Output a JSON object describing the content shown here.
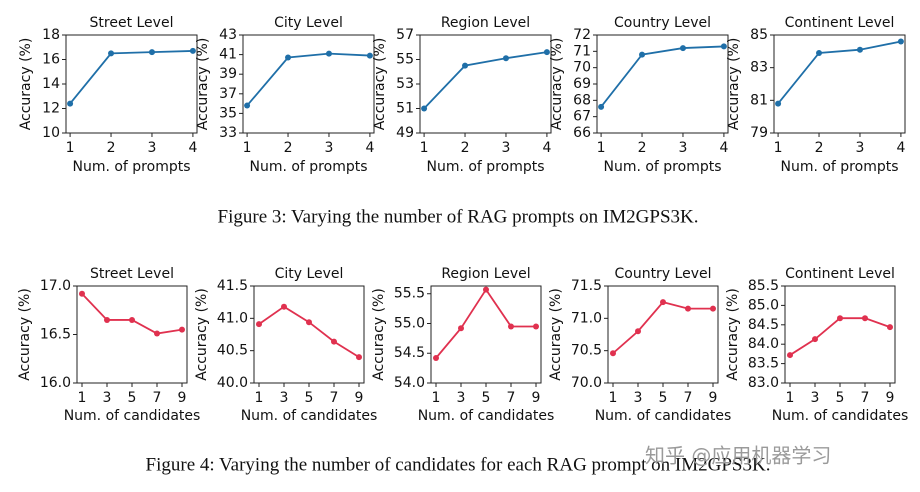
{
  "chart_data": [
    {
      "type": "line",
      "title": "Street Level",
      "xlabel": "Num. of prompts",
      "ylabel": "Accuracy (%)",
      "x": [
        1,
        2,
        3,
        4
      ],
      "xlim": [
        0.9,
        4.1
      ],
      "xticks": [
        1,
        2,
        3,
        4
      ],
      "ylim": [
        10,
        18
      ],
      "yticks": [
        10,
        12,
        14,
        16,
        18
      ],
      "series": [
        {
          "color": "#1f6fa8",
          "values": [
            12.4,
            16.5,
            16.6,
            16.7
          ]
        }
      ]
    },
    {
      "type": "line",
      "title": "City Level",
      "xlabel": "Num. of prompts",
      "ylabel": "Accuracy (%)",
      "x": [
        1,
        2,
        3,
        4
      ],
      "xlim": [
        0.9,
        4.1
      ],
      "xticks": [
        1,
        2,
        3,
        4
      ],
      "ylim": [
        33,
        43
      ],
      "yticks": [
        33,
        35,
        37,
        39,
        41,
        43
      ],
      "series": [
        {
          "color": "#1f6fa8",
          "values": [
            35.8,
            40.7,
            41.1,
            40.9
          ]
        }
      ]
    },
    {
      "type": "line",
      "title": "Region Level",
      "xlabel": "Num. of prompts",
      "ylabel": "Accuracy (%)",
      "x": [
        1,
        2,
        3,
        4
      ],
      "xlim": [
        0.9,
        4.1
      ],
      "xticks": [
        1,
        2,
        3,
        4
      ],
      "ylim": [
        49,
        57
      ],
      "yticks": [
        49,
        51,
        53,
        55,
        57
      ],
      "series": [
        {
          "color": "#1f6fa8",
          "values": [
            51.0,
            54.5,
            55.1,
            55.6
          ]
        }
      ]
    },
    {
      "type": "line",
      "title": "Country Level",
      "xlabel": "Num. of prompts",
      "ylabel": "Accuracy (%)",
      "x": [
        1,
        2,
        3,
        4
      ],
      "xlim": [
        0.9,
        4.1
      ],
      "xticks": [
        1,
        2,
        3,
        4
      ],
      "ylim": [
        66,
        72
      ],
      "yticks": [
        66,
        67,
        68,
        69,
        70,
        71,
        72
      ],
      "series": [
        {
          "color": "#1f6fa8",
          "values": [
            67.6,
            70.8,
            71.2,
            71.3
          ]
        }
      ]
    },
    {
      "type": "line",
      "title": "Continent Level",
      "xlabel": "Num. of prompts",
      "ylabel": "Accuracy (%)",
      "x": [
        1,
        2,
        3,
        4
      ],
      "xlim": [
        0.9,
        4.1
      ],
      "xticks": [
        1,
        2,
        3,
        4
      ],
      "ylim": [
        79,
        85
      ],
      "yticks": [
        79,
        81,
        83,
        85
      ],
      "series": [
        {
          "color": "#1f6fa8",
          "values": [
            80.8,
            83.9,
            84.1,
            84.6
          ]
        }
      ]
    },
    {
      "type": "line",
      "title": "Street Level",
      "xlabel": "Num. of candidates",
      "ylabel": "Accuracy (%)",
      "x": [
        1,
        3,
        5,
        7,
        9
      ],
      "xlim": [
        0.6,
        9.4
      ],
      "xticks": [
        1,
        3,
        5,
        7,
        9
      ],
      "ylim": [
        16,
        17
      ],
      "yticks": [
        {
          "value": 16,
          "label": "16.0"
        },
        16.5,
        {
          "value": 17,
          "label": "17.0"
        }
      ],
      "series": [
        {
          "color": "#e0314f",
          "values": [
            16.92,
            16.65,
            16.65,
            16.51,
            16.55
          ]
        }
      ]
    },
    {
      "type": "line",
      "title": "City Level",
      "xlabel": "Num. of candidates",
      "ylabel": "Accuracy (%)",
      "x": [
        1,
        3,
        5,
        7,
        9
      ],
      "xlim": [
        0.6,
        9.4
      ],
      "xticks": [
        1,
        3,
        5,
        7,
        9
      ],
      "ylim": [
        40,
        41.5
      ],
      "yticks": [
        {
          "value": 40,
          "label": "40.0"
        },
        40.5,
        {
          "value": 41,
          "label": "41.0"
        },
        41.5
      ],
      "series": [
        {
          "color": "#e0314f",
          "values": [
            40.91,
            41.18,
            40.94,
            40.64,
            40.4
          ]
        }
      ]
    },
    {
      "type": "line",
      "title": "Region Level",
      "xlabel": "Num. of candidates",
      "ylabel": "Accuracy (%)",
      "x": [
        1,
        3,
        5,
        7,
        9
      ],
      "xlim": [
        0.6,
        9.4
      ],
      "xticks": [
        1,
        3,
        5,
        7,
        9
      ],
      "ylim": [
        54,
        55.63
      ],
      "yticks": [
        {
          "value": 54,
          "label": "54.0"
        },
        54.5,
        {
          "value": 55,
          "label": "55.0"
        },
        55.5
      ],
      "series": [
        {
          "color": "#e0314f",
          "values": [
            54.42,
            54.92,
            55.57,
            54.95,
            54.95
          ]
        }
      ]
    },
    {
      "type": "line",
      "title": "Country Level",
      "xlabel": "Num. of candidates",
      "ylabel": "Accuracy (%)",
      "x": [
        1,
        3,
        5,
        7,
        9
      ],
      "xlim": [
        0.6,
        9.4
      ],
      "xticks": [
        1,
        3,
        5,
        7,
        9
      ],
      "ylim": [
        70,
        71.5
      ],
      "yticks": [
        {
          "value": 70,
          "label": "70.0"
        },
        70.5,
        {
          "value": 71,
          "label": "71.0"
        },
        71.5
      ],
      "series": [
        {
          "color": "#e0314f",
          "values": [
            70.46,
            70.8,
            71.25,
            71.15,
            71.15
          ]
        }
      ]
    },
    {
      "type": "line",
      "title": "Continent Level",
      "xlabel": "Num. of candidates",
      "ylabel": "Accuracy (%)",
      "x": [
        1,
        3,
        5,
        7,
        9
      ],
      "xlim": [
        0.6,
        9.4
      ],
      "xticks": [
        1,
        3,
        5,
        7,
        9
      ],
      "ylim": [
        83,
        85.5
      ],
      "yticks": [
        {
          "value": 83,
          "label": "83.0"
        },
        83.5,
        {
          "value": 84,
          "label": "84.0"
        },
        84.5,
        {
          "value": 85,
          "label": "85.0"
        },
        85.5
      ],
      "series": [
        {
          "color": "#e0314f",
          "values": [
            83.72,
            84.13,
            84.67,
            84.67,
            84.44
          ]
        }
      ]
    }
  ],
  "captions": [
    "Figure 3: Varying the number of RAG prompts on IM2GPS3K.",
    "Figure 4: Varying the number of candidates for each RAG prompt on IM2GPS3K."
  ],
  "watermark": "知乎 @应用机器学习"
}
